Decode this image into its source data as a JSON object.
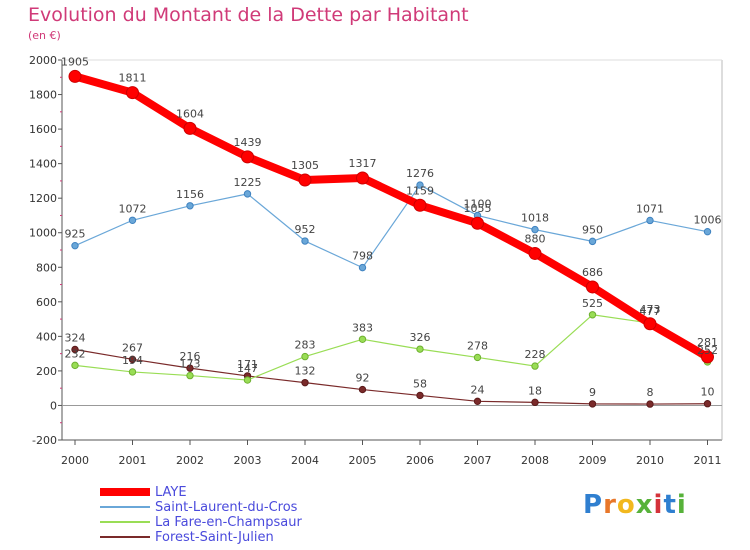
{
  "header": {
    "title": "Evolution du Montant de la Dette par Habitant",
    "unit": "(en €)"
  },
  "brand": {
    "letters": [
      "P",
      "r",
      "o",
      "x",
      "i",
      "t",
      "i"
    ],
    "colors": [
      "#2f7fd0",
      "#e8772a",
      "#f2b81e",
      "#57b23a",
      "#d4323a",
      "#2f7fd0",
      "#57b23a"
    ]
  },
  "chart_data": {
    "type": "line",
    "title": "Evolution du Montant de la Dette par Habitant",
    "ylabel": "(en €)",
    "xlabel": "",
    "ylim": [
      -200,
      2000
    ],
    "yticks": [
      -200,
      0,
      200,
      400,
      600,
      800,
      1000,
      1200,
      1400,
      1600,
      1800,
      2000
    ],
    "x": [
      "2000",
      "2001",
      "2002",
      "2003",
      "2004",
      "2005",
      "2006",
      "2007",
      "2008",
      "2009",
      "2010",
      "2011"
    ],
    "grid": false,
    "legend_position": "bottom-left",
    "series": [
      {
        "name": "LAYE",
        "color": "#ff0000",
        "values": [
          1905,
          1811,
          1604,
          1439,
          1305,
          1317,
          1159,
          1055,
          880,
          686,
          473,
          281
        ]
      },
      {
        "name": "Saint-Laurent-du-Cros",
        "color": "#6aa7d8",
        "values": [
          925,
          1072,
          1156,
          1225,
          952,
          798,
          1276,
          1100,
          1018,
          950,
          1071,
          1006
        ]
      },
      {
        "name": "La Fare-en-Champsaur",
        "color": "#99dd55",
        "values": [
          232,
          194,
          173,
          147,
          283,
          383,
          326,
          278,
          228,
          525,
          477,
          252
        ]
      },
      {
        "name": "Forest-Saint-Julien",
        "color": "#7a2a2a",
        "values": [
          324,
          267,
          216,
          171,
          132,
          92,
          58,
          24,
          18,
          9,
          8,
          10
        ]
      }
    ]
  }
}
